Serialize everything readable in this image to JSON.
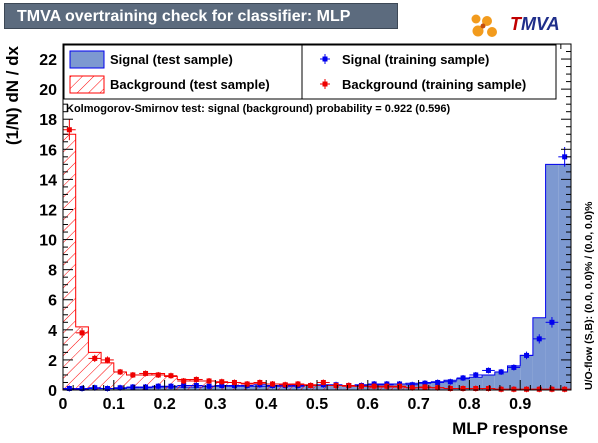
{
  "title": "TMVA overtraining check for classifier: MLP",
  "logo": {
    "t": "T",
    "rest": "MVA"
  },
  "ks_text": "Kolmogorov-Smirnov test: signal (background) probability = 0.922 (0.596)",
  "uo_text": "U/O-flow (S,B): (0.0, 0.0)% / (0.0, 0.0)%",
  "colors": {
    "signal_fill": "#7d99d1",
    "signal_line": "#0000ee",
    "background_line": "#ff0000",
    "background_point": "#ee0000",
    "title_bg": "#5c6b7e"
  },
  "chart_data": {
    "type": "histogram",
    "xlabel": "MLP response",
    "ylabel": "(1/N) dN / dx",
    "xlim": [
      0,
      1
    ],
    "ylim": [
      0,
      23
    ],
    "x_ticks": [
      "0",
      "0.1",
      "0.2",
      "0.3",
      "0.4",
      "0.5",
      "0.6",
      "0.7",
      "0.8",
      "0.9"
    ],
    "y_ticks": [
      "0",
      "2",
      "4",
      "6",
      "8",
      "10",
      "12",
      "14",
      "16",
      "18",
      "20",
      "22"
    ],
    "legend": [
      {
        "key": "sig_test",
        "label": "Signal (test sample)"
      },
      {
        "key": "sig_train",
        "label": "Signal (training sample)"
      },
      {
        "key": "bkg_test",
        "label": "Background (test sample)"
      },
      {
        "key": "bkg_train",
        "label": "Background (training sample)"
      }
    ],
    "bins": 40,
    "signal_test": [
      0.05,
      0.05,
      0.1,
      0.1,
      0.1,
      0.15,
      0.15,
      0.2,
      0.2,
      0.2,
      0.2,
      0.25,
      0.25,
      0.25,
      0.25,
      0.25,
      0.25,
      0.25,
      0.25,
      0.3,
      0.3,
      0.3,
      0.3,
      0.35,
      0.35,
      0.35,
      0.4,
      0.45,
      0.5,
      0.55,
      0.65,
      0.75,
      0.85,
      1.0,
      1.2,
      1.6,
      2.3,
      4.8,
      15.0,
      15.0
    ],
    "signal_train": [
      0.1,
      0.1,
      0.15,
      0.1,
      0.15,
      0.2,
      0.2,
      0.25,
      0.25,
      0.3,
      0.3,
      0.25,
      0.3,
      0.3,
      0.3,
      0.35,
      0.3,
      0.3,
      0.3,
      0.3,
      0.35,
      0.35,
      0.3,
      0.3,
      0.4,
      0.4,
      0.4,
      0.35,
      0.45,
      0.5,
      0.55,
      0.8,
      1.0,
      1.3,
      1.2,
      1.5,
      2.3,
      3.4,
      4.5,
      15.5
    ],
    "background_test": [
      17.0,
      4.2,
      2.5,
      1.8,
      1.2,
      1.0,
      1.0,
      1.1,
      0.9,
      0.7,
      0.6,
      0.6,
      0.5,
      0.5,
      0.45,
      0.45,
      0.4,
      0.4,
      0.35,
      0.35,
      0.3,
      0.3,
      0.25,
      0.25,
      0.2,
      0.2,
      0.2,
      0.15,
      0.15,
      0.15,
      0.1,
      0.1,
      0.1,
      0.1,
      0.05,
      0.05,
      0.05,
      0.05,
      0.05,
      0.05
    ],
    "background_train": [
      17.3,
      3.8,
      2.1,
      2.0,
      1.2,
      1.0,
      1.1,
      1.0,
      0.95,
      0.6,
      0.7,
      0.6,
      0.55,
      0.5,
      0.4,
      0.5,
      0.4,
      0.35,
      0.4,
      0.3,
      0.5,
      0.3,
      0.3,
      0.25,
      0.25,
      0.25,
      0.25,
      0.15,
      0.2,
      0.15,
      0.1,
      0.1,
      0.1,
      0.1,
      0.05,
      0.05,
      0.05,
      0.05,
      0.05,
      0.05
    ]
  }
}
